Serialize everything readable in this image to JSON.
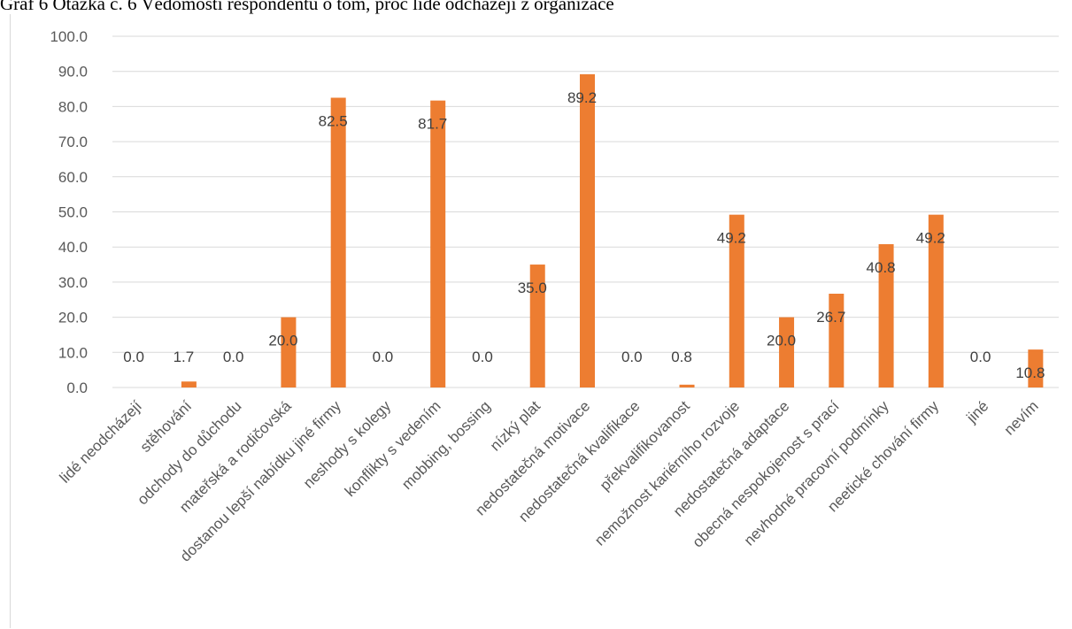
{
  "caption": "Graf 6 Otázka č. 6 Vědomosti respondentů o tom, proč lidé odcházejí z organizace",
  "colors": {
    "bar": "#ed7d31",
    "grid": "#d9d9d9",
    "tick": "#595959",
    "label": "#404040"
  },
  "chart_data": {
    "type": "bar",
    "title": "",
    "xlabel": "",
    "ylabel": "",
    "ylim": [
      0,
      100
    ],
    "ytick_step": 10,
    "ytick_labels": [
      "0.0",
      "10.0",
      "20.0",
      "30.0",
      "40.0",
      "50.0",
      "60.0",
      "70.0",
      "80.0",
      "90.0",
      "100.0"
    ],
    "grid": true,
    "legend": "none",
    "categories": [
      "lidé neodcházejí",
      "stěhování",
      "odchody do důchodu",
      "mateřská a rodičovská",
      "dostanou lepší nabídku jiné firmy",
      "neshody s kolegy",
      "konflikty s vedením",
      "mobbing, bossing",
      "nízký plat",
      "nedostatečná motivace",
      "nedostatečná kvalifikace",
      "překvalifikovanost",
      "nemožnost kariérního rozvoje",
      "nedostatečná adaptace",
      "obecná nespokojenost s prací",
      "nevhodné pracovní podmínky",
      "neetické chování firmy",
      "jiné",
      "nevím"
    ],
    "values": [
      0.0,
      1.7,
      0.0,
      20.0,
      82.5,
      0.0,
      81.7,
      0.0,
      35.0,
      89.2,
      0.0,
      0.8,
      49.2,
      20.0,
      26.7,
      40.8,
      49.2,
      0.0,
      10.8
    ],
    "value_labels": [
      "0.0",
      "1.7",
      "0.0",
      "20.0",
      "82.5",
      "0.0",
      "81.7",
      "0.0",
      "35.0",
      "89.2",
      "0.0",
      "0.8",
      "49.2",
      "20.0",
      "26.7",
      "40.8",
      "49.2",
      "0.0",
      "10.8"
    ]
  }
}
